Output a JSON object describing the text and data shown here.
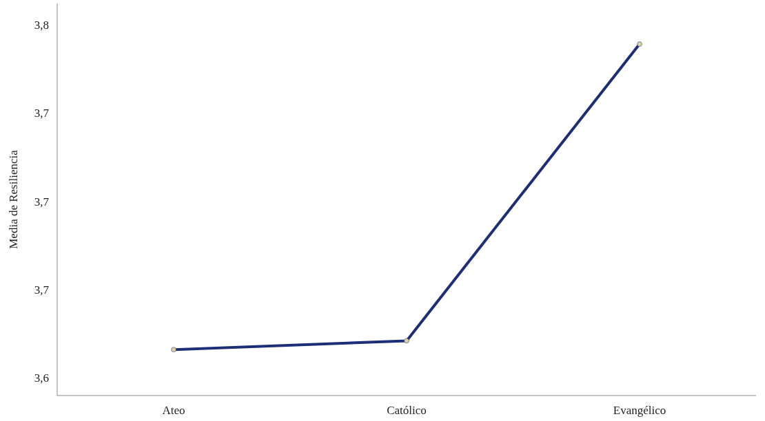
{
  "chart_data": {
    "type": "line",
    "ylabel": "Media de Resiliencia",
    "categories": [
      "Ateo",
      "Católico",
      "Evangélico"
    ],
    "series": [
      {
        "color": "#1c2e78",
        "values": [
          3.616,
          3.621,
          3.789
        ]
      }
    ],
    "ylim": [
      3.59,
      3.812
    ],
    "yticks": [
      {
        "value": 3.6,
        "label": "3,6"
      },
      {
        "value": 3.65,
        "label": "3,7"
      },
      {
        "value": 3.7,
        "label": "3,7"
      },
      {
        "value": 3.75,
        "label": "3,7"
      },
      {
        "value": 3.8,
        "label": "3,8"
      }
    ],
    "marker": "circle",
    "line_style": "solid"
  }
}
